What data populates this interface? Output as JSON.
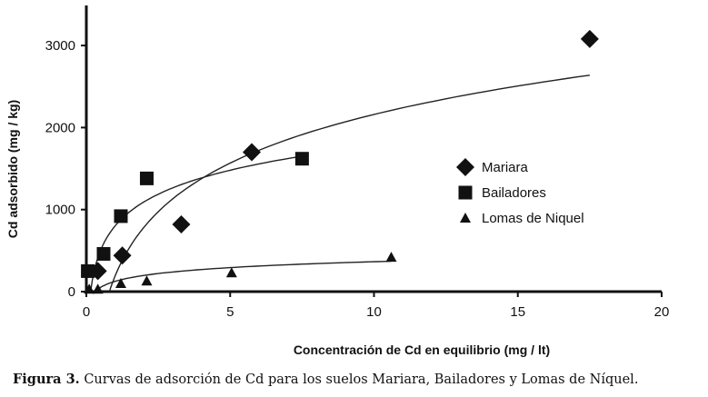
{
  "chart_data": {
    "type": "scatter",
    "title": "",
    "xlabel": "Concentración de Cd en equilibrio (mg / lt)",
    "ylabel": "Cd adsorbido (mg / kg)",
    "xlim": [
      0,
      20
    ],
    "ylim": [
      0,
      3500
    ],
    "xticks": [
      0,
      5,
      10,
      15,
      20
    ],
    "yticks": [
      0,
      1000,
      2000,
      3000
    ],
    "grid": false,
    "legend_position": "right",
    "series": [
      {
        "name": "Mariara",
        "marker": "diamond",
        "x": [
          0.4,
          1.25,
          3.3,
          5.75,
          17.5
        ],
        "y": [
          250,
          440,
          820,
          1700,
          3080
        ],
        "fit": {
          "model": "logarithmic",
          "x_zero": 0.8,
          "coef": 855,
          "x_end": 17.5
        }
      },
      {
        "name": "Bailadores",
        "marker": "square",
        "x": [
          0.05,
          0.6,
          1.2,
          2.1,
          7.5
        ],
        "y": [
          250,
          460,
          920,
          1380,
          1620
        ],
        "fit": {
          "model": "logarithmic",
          "x_zero": 0.15,
          "coef": 422,
          "x_end": 7.5
        }
      },
      {
        "name": "Lomas de Niquel",
        "marker": "triangle",
        "x": [
          0.1,
          0.4,
          1.2,
          2.1,
          5.05,
          10.6
        ],
        "y": [
          30,
          30,
          100,
          130,
          230,
          420
        ],
        "fit": {
          "model": "logarithmic",
          "x_zero": 0.3,
          "coef": 104,
          "x_end": 10.6
        }
      }
    ]
  },
  "caption": {
    "label": "Figura 3.",
    "text": " Curvas de adsorción de Cd para los suelos Mariara, Bailadores y Lomas de Níquel."
  }
}
